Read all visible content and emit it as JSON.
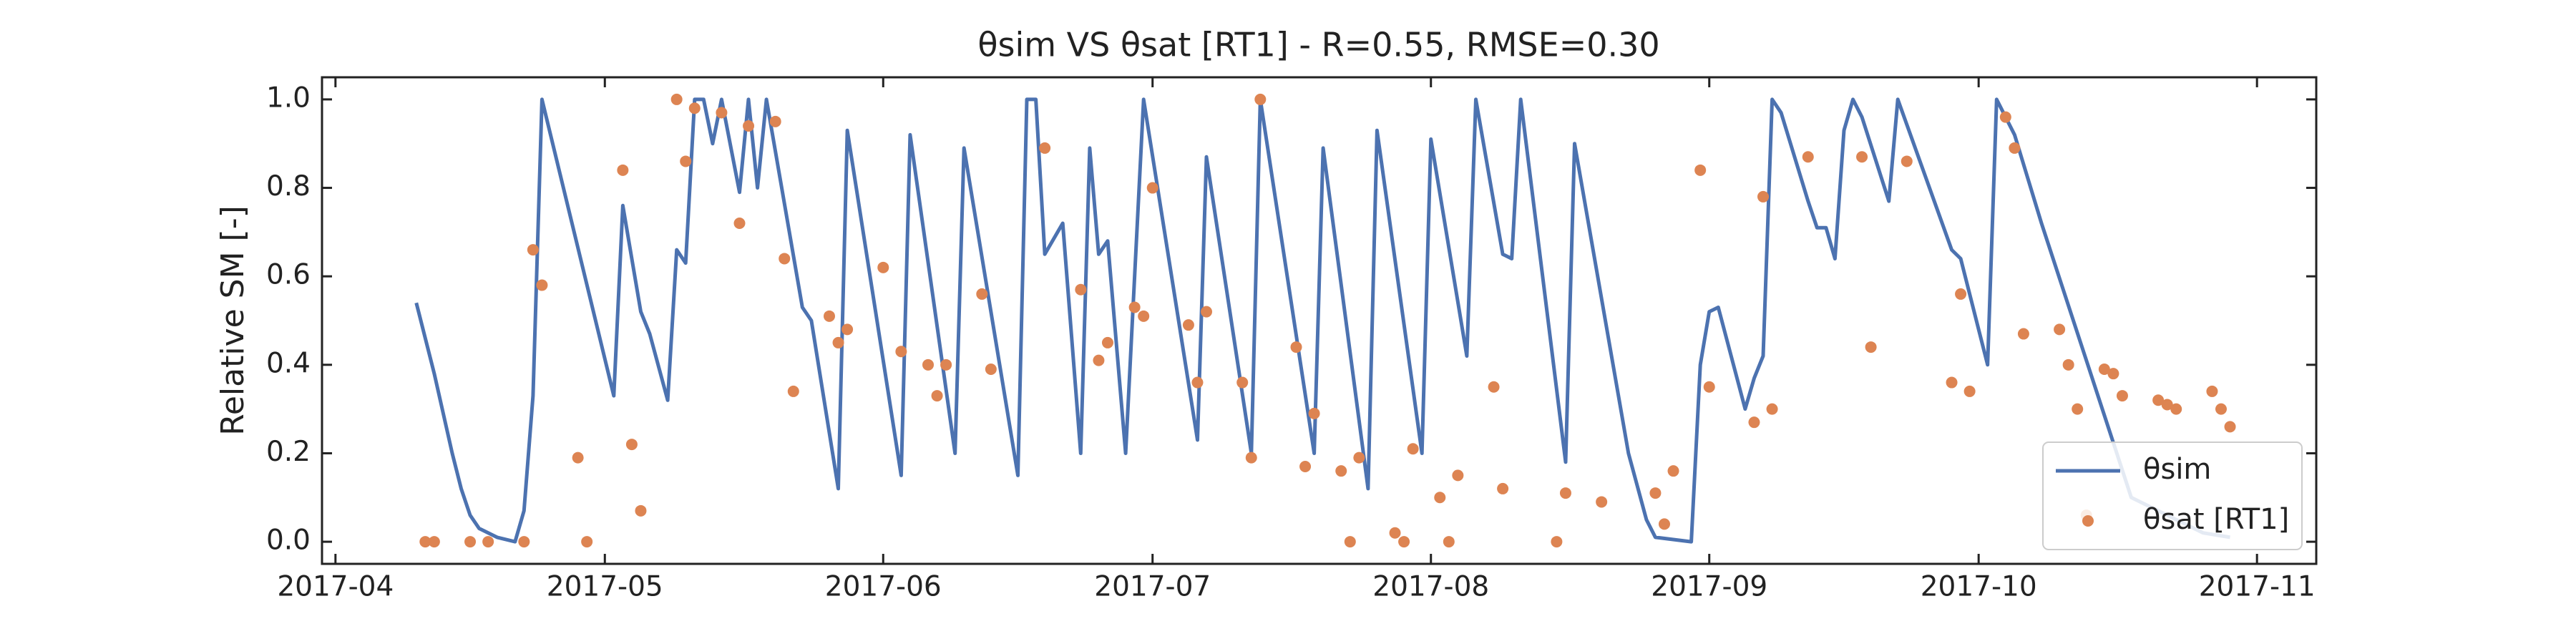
{
  "chart_data": {
    "type": "line",
    "title": "θsim VS θsat [RT1] - R=0.55, RMSE=0.30",
    "y_label": "Relative SM [-]",
    "legend": "lower right",
    "xlim": [
      17255.5,
      17477.6
    ],
    "xticks": [
      {
        "value": 17257,
        "label": "2017-04"
      },
      {
        "value": 17287,
        "label": "2017-05"
      },
      {
        "value": 17318,
        "label": "2017-06"
      },
      {
        "value": 17348,
        "label": "2017-07"
      },
      {
        "value": 17379,
        "label": "2017-08"
      },
      {
        "value": 17410,
        "label": "2017-09"
      },
      {
        "value": 17440,
        "label": "2017-10"
      },
      {
        "value": 17471,
        "label": "2017-11"
      }
    ],
    "ylim": [
      -0.05,
      1.05
    ],
    "yticks": [
      {
        "value": 0,
        "label": "0.0"
      },
      0.2,
      0.4,
      0.6,
      0.8,
      {
        "value": 1,
        "label": "1.0"
      }
    ],
    "series": [
      {
        "name": "θsim",
        "type": "line",
        "color": "#4c72b0",
        "x": [
          17266,
          17268,
          17270,
          17271,
          17272,
          17273,
          17275,
          17277,
          17278,
          17279,
          17280,
          17288,
          17289,
          17291,
          17292,
          17294,
          17295,
          17296,
          17297,
          17298,
          17299,
          17300,
          17302,
          17303,
          17304,
          17305,
          17309,
          17310,
          17313,
          17314,
          17320,
          17321,
          17326,
          17327,
          17333,
          17334,
          17335,
          17336,
          17338,
          17340,
          17341,
          17342,
          17343,
          17345,
          17347,
          17353,
          17354,
          17359,
          17360,
          17366,
          17367,
          17372,
          17373,
          17378,
          17379,
          17383,
          17384,
          17387,
          17388,
          17389,
          17394,
          17395,
          17401,
          17403,
          17404,
          17408,
          17409,
          17410,
          17411,
          17414,
          17415,
          17416,
          17417,
          17418,
          17421,
          17422,
          17423,
          17424,
          17425,
          17426,
          17427,
          17430,
          17431,
          17437,
          17438,
          17441,
          17442,
          17444,
          17447,
          17457,
          17465,
          17468
        ],
        "values": [
          0.54,
          0.38,
          0.2,
          0.12,
          0.06,
          0.03,
          0.01,
          0.0,
          0.07,
          0.33,
          1.0,
          0.33,
          0.76,
          0.52,
          0.47,
          0.32,
          0.66,
          0.63,
          1.0,
          1.0,
          0.9,
          1.0,
          0.79,
          1.0,
          0.8,
          1.0,
          0.53,
          0.5,
          0.12,
          0.93,
          0.15,
          0.92,
          0.2,
          0.89,
          0.15,
          1.0,
          1.0,
          0.65,
          0.72,
          0.2,
          0.89,
          0.65,
          0.68,
          0.2,
          1.0,
          0.23,
          0.87,
          0.2,
          1.0,
          0.2,
          0.89,
          0.12,
          0.93,
          0.2,
          0.91,
          0.42,
          1.0,
          0.65,
          0.64,
          1.0,
          0.18,
          0.9,
          0.2,
          0.05,
          0.01,
          0.0,
          0.4,
          0.52,
          0.53,
          0.3,
          0.37,
          0.42,
          1.0,
          0.97,
          0.77,
          0.71,
          0.71,
          0.64,
          0.93,
          1.0,
          0.96,
          0.77,
          1.0,
          0.66,
          0.64,
          0.4,
          1.0,
          0.92,
          0.72,
          0.1,
          0.02,
          0.01
        ]
      },
      {
        "name": "θsat [RT1]",
        "type": "scatter",
        "color": "#dd8452",
        "x": [
          17267,
          17268,
          17272,
          17274,
          17278,
          17279,
          17280,
          17284,
          17285,
          17289,
          17290,
          17291,
          17295,
          17296,
          17297,
          17300,
          17302,
          17303,
          17306,
          17307,
          17308,
          17312,
          17313,
          17314,
          17318,
          17320,
          17323,
          17324,
          17325,
          17329,
          17330,
          17336,
          17340,
          17342,
          17343,
          17346,
          17347,
          17348,
          17352,
          17353,
          17354,
          17358,
          17359,
          17360,
          17364,
          17365,
          17366,
          17369,
          17370,
          17371,
          17375,
          17376,
          17377,
          17380,
          17381,
          17382,
          17386,
          17387,
          17393,
          17394,
          17398,
          17404,
          17405,
          17406,
          17409,
          17410,
          17415,
          17416,
          17417,
          17421,
          17427,
          17428,
          17432,
          17437,
          17438,
          17439,
          17443,
          17444,
          17445,
          17449,
          17450,
          17451,
          17452,
          17454,
          17455,
          17456,
          17460,
          17461,
          17462,
          17466,
          17467,
          17468
        ],
        "values": [
          0.0,
          0.0,
          0.0,
          0.0,
          0.0,
          0.66,
          0.58,
          0.19,
          0.0,
          0.84,
          0.22,
          0.07,
          1.0,
          0.86,
          0.98,
          0.97,
          0.72,
          0.94,
          0.95,
          0.64,
          0.34,
          0.51,
          0.45,
          0.48,
          0.62,
          0.43,
          0.4,
          0.33,
          0.4,
          0.56,
          0.39,
          0.89,
          0.57,
          0.41,
          0.45,
          0.53,
          0.51,
          0.8,
          0.49,
          0.36,
          0.52,
          0.36,
          0.19,
          1.0,
          0.44,
          0.17,
          0.29,
          0.16,
          0.0,
          0.19,
          0.02,
          0.0,
          0.21,
          0.1,
          0.0,
          0.15,
          0.35,
          0.12,
          0.0,
          0.11,
          0.09,
          0.11,
          0.04,
          0.16,
          0.84,
          0.35,
          0.27,
          0.78,
          0.3,
          0.87,
          0.87,
          0.44,
          0.86,
          0.36,
          0.56,
          0.34,
          0.96,
          0.89,
          0.47,
          0.48,
          0.4,
          0.3,
          0.06,
          0.39,
          0.38,
          0.33,
          0.32,
          0.31,
          0.3,
          0.34,
          0.3,
          0.26
        ]
      }
    ]
  }
}
